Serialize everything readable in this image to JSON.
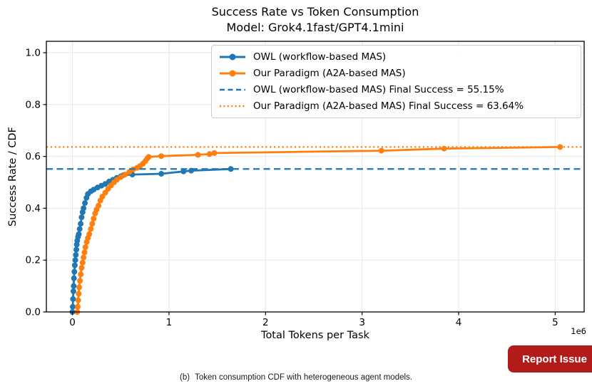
{
  "title": "Success Rate vs Token Consumption",
  "subtitle": "Model: Grok4.1fast/GPT4.1mini",
  "caption": {
    "prefix": "(b)",
    "text": "Token consumption CDF with heterogeneous agent models."
  },
  "report_button": {
    "label": "Report Issue",
    "color": "#b31b1b"
  },
  "chart_data": {
    "type": "line",
    "title": "Success Rate vs Token Consumption",
    "subtitle": "Model: Grok4.1fast/GPT4.1mini",
    "xlabel": "Total Tokens per Task",
    "ylabel": "Success Rate / CDF",
    "x_offset_label": "1e6",
    "x_unit": 1000000,
    "xlim": [
      -0.27,
      5.3
    ],
    "ylim": [
      0,
      1.044
    ],
    "x_ticks": [
      0,
      1,
      2,
      3,
      4,
      5
    ],
    "x_tick_labels": [
      "0",
      "1",
      "2",
      "3",
      "4",
      "5"
    ],
    "y_ticks": [
      0.0,
      0.2,
      0.4,
      0.6,
      0.8,
      1.0
    ],
    "y_tick_labels": [
      "0.0",
      "0.2",
      "0.4",
      "0.6",
      "0.8",
      "1.0"
    ],
    "grid": true,
    "grid_color": "#e6e6e6",
    "legend_position": "upper right",
    "series": [
      {
        "name": "OWL (workflow-based MAS)",
        "color": "#1f77b4",
        "style": "solid-marker",
        "points": [
          [
            0.0,
            0.0
          ],
          [
            0.003,
            0.02
          ],
          [
            0.006,
            0.05
          ],
          [
            0.01,
            0.08
          ],
          [
            0.013,
            0.1
          ],
          [
            0.016,
            0.13
          ],
          [
            0.02,
            0.155
          ],
          [
            0.025,
            0.18
          ],
          [
            0.03,
            0.2
          ],
          [
            0.035,
            0.22
          ],
          [
            0.04,
            0.24
          ],
          [
            0.045,
            0.26
          ],
          [
            0.05,
            0.275
          ],
          [
            0.058,
            0.29
          ],
          [
            0.066,
            0.3
          ],
          [
            0.075,
            0.32
          ],
          [
            0.085,
            0.34
          ],
          [
            0.095,
            0.365
          ],
          [
            0.105,
            0.385
          ],
          [
            0.115,
            0.4
          ],
          [
            0.13,
            0.42
          ],
          [
            0.145,
            0.44
          ],
          [
            0.16,
            0.455
          ],
          [
            0.19,
            0.465
          ],
          [
            0.22,
            0.472
          ],
          [
            0.26,
            0.48
          ],
          [
            0.3,
            0.487
          ],
          [
            0.34,
            0.494
          ],
          [
            0.38,
            0.503
          ],
          [
            0.42,
            0.51
          ],
          [
            0.46,
            0.517
          ],
          [
            0.5,
            0.523
          ],
          [
            0.53,
            0.528
          ],
          [
            0.62,
            0.53
          ],
          [
            0.92,
            0.533
          ],
          [
            1.15,
            0.542
          ],
          [
            1.23,
            0.545
          ],
          [
            1.64,
            0.5515
          ]
        ]
      },
      {
        "name": "Our Paradigm (A2A-based MAS)",
        "color": "#ff7f0e",
        "style": "solid-marker",
        "points": [
          [
            0.05,
            0.0
          ],
          [
            0.055,
            0.02
          ],
          [
            0.06,
            0.045
          ],
          [
            0.065,
            0.07
          ],
          [
            0.07,
            0.095
          ],
          [
            0.078,
            0.12
          ],
          [
            0.086,
            0.145
          ],
          [
            0.095,
            0.17
          ],
          [
            0.105,
            0.19
          ],
          [
            0.115,
            0.21
          ],
          [
            0.125,
            0.23
          ],
          [
            0.135,
            0.25
          ],
          [
            0.148,
            0.27
          ],
          [
            0.16,
            0.285
          ],
          [
            0.175,
            0.3
          ],
          [
            0.19,
            0.32
          ],
          [
            0.205,
            0.34
          ],
          [
            0.22,
            0.36
          ],
          [
            0.235,
            0.38
          ],
          [
            0.25,
            0.395
          ],
          [
            0.27,
            0.41
          ],
          [
            0.29,
            0.43
          ],
          [
            0.31,
            0.445
          ],
          [
            0.34,
            0.46
          ],
          [
            0.37,
            0.475
          ],
          [
            0.4,
            0.488
          ],
          [
            0.43,
            0.5
          ],
          [
            0.46,
            0.51
          ],
          [
            0.5,
            0.52
          ],
          [
            0.545,
            0.53
          ],
          [
            0.59,
            0.54
          ],
          [
            0.63,
            0.55
          ],
          [
            0.67,
            0.556
          ],
          [
            0.7,
            0.563
          ],
          [
            0.73,
            0.572
          ],
          [
            0.755,
            0.582
          ],
          [
            0.775,
            0.592
          ],
          [
            0.79,
            0.598
          ],
          [
            0.92,
            0.601
          ],
          [
            1.3,
            0.606
          ],
          [
            1.42,
            0.609
          ],
          [
            1.47,
            0.613
          ],
          [
            3.2,
            0.622
          ],
          [
            3.85,
            0.63
          ],
          [
            5.05,
            0.6364
          ]
        ]
      },
      {
        "name": "OWL (workflow-based MAS) Final Success = 55.15%",
        "color": "#1f77b4",
        "style": "dashed",
        "y": 0.5515,
        "final_success_pct": 55.15
      },
      {
        "name": "Our Paradigm (A2A-based MAS) Final Success = 63.64%",
        "color": "#ff7f0e",
        "style": "dotted",
        "y": 0.6364,
        "final_success_pct": 63.64
      }
    ]
  }
}
